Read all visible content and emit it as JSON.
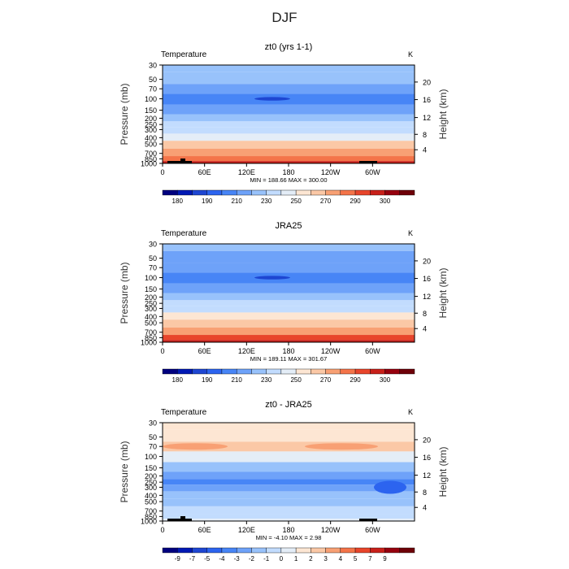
{
  "page": {
    "title": "DJF"
  },
  "colors": {
    "abs_scale": [
      "#00007f",
      "#0019b4",
      "#1e46d2",
      "#2c64ef",
      "#4785f6",
      "#6ea2f9",
      "#98c2fb",
      "#c2dcfe",
      "#e4edf7",
      "#fde6d3",
      "#fbc8a6",
      "#f8a074",
      "#f47449",
      "#e8452b",
      "#c8201a",
      "#96000e",
      "#6e0008"
    ],
    "diff_scale": [
      "#00007f",
      "#0019b4",
      "#1e46d2",
      "#2c64ef",
      "#4785f6",
      "#6ea2f9",
      "#98c2fb",
      "#c2dcfe",
      "#e4edf7",
      "#fde6d3",
      "#fbc8a6",
      "#f8a074",
      "#f47449",
      "#e8452b",
      "#c8201a",
      "#96000e",
      "#6e0008"
    ],
    "topography": "#000000"
  },
  "chart_data": [
    {
      "type": "heatmap",
      "title": "zt0 (yrs 1-1)",
      "left_label": "Temperature",
      "right_label": "K",
      "xticks": [
        "0",
        "60E",
        "120E",
        "180",
        "120W",
        "60W"
      ],
      "yticks_left": [
        "30",
        "50",
        "70",
        "100",
        "150",
        "200",
        "250",
        "300",
        "400",
        "500",
        "700",
        "850",
        "1000"
      ],
      "yticks_right": [
        "20",
        "16",
        "12",
        "8",
        "4"
      ],
      "ylabel_left": "Pressure (mb)",
      "ylabel_right": "Height (km)",
      "stats": "MIN = 188.66   MAX = 300.00",
      "colorbar_labels": [
        "180",
        "190",
        "210",
        "230",
        "250",
        "270",
        "290",
        "300"
      ],
      "profile_by_level": [
        {
          "p": 30,
          "value": 218
        },
        {
          "p": 50,
          "value": 212
        },
        {
          "p": 70,
          "value": 205
        },
        {
          "p": 100,
          "value": 196
        },
        {
          "p": 150,
          "value": 208
        },
        {
          "p": 200,
          "value": 216
        },
        {
          "p": 250,
          "value": 222
        },
        {
          "p": 300,
          "value": 228
        },
        {
          "p": 400,
          "value": 240
        },
        {
          "p": 500,
          "value": 252
        },
        {
          "p": 700,
          "value": 268
        },
        {
          "p": 850,
          "value": 280
        },
        {
          "p": 1000,
          "value": 292
        }
      ]
    },
    {
      "type": "heatmap",
      "title": "JRA25",
      "left_label": "Temperature",
      "right_label": "K",
      "xticks": [
        "0",
        "60E",
        "120E",
        "180",
        "120W",
        "60W"
      ],
      "yticks_left": [
        "30",
        "50",
        "70",
        "100",
        "150",
        "200",
        "250",
        "300",
        "400",
        "500",
        "700",
        "850",
        "1000"
      ],
      "yticks_right": [
        "20",
        "16",
        "12",
        "8",
        "4"
      ],
      "ylabel_left": "Pressure (mb)",
      "ylabel_right": "Height (km)",
      "stats": "MIN = 189.11   MAX = 301.67",
      "colorbar_labels": [
        "180",
        "190",
        "210",
        "230",
        "250",
        "270",
        "290",
        "300"
      ],
      "profile_by_level": [
        {
          "p": 30,
          "value": 216
        },
        {
          "p": 50,
          "value": 210
        },
        {
          "p": 70,
          "value": 203
        },
        {
          "p": 100,
          "value": 195
        },
        {
          "p": 150,
          "value": 207
        },
        {
          "p": 200,
          "value": 216
        },
        {
          "p": 250,
          "value": 223
        },
        {
          "p": 300,
          "value": 229
        },
        {
          "p": 400,
          "value": 241
        },
        {
          "p": 500,
          "value": 253
        },
        {
          "p": 700,
          "value": 269
        },
        {
          "p": 850,
          "value": 281
        },
        {
          "p": 1000,
          "value": 294
        }
      ]
    },
    {
      "type": "heatmap",
      "title": "zt0 - JRA25",
      "left_label": "Temperature",
      "right_label": "K",
      "xticks": [
        "0",
        "60E",
        "120E",
        "180",
        "120W",
        "60W"
      ],
      "yticks_left": [
        "30",
        "50",
        "70",
        "100",
        "150",
        "200",
        "250",
        "300",
        "400",
        "500",
        "700",
        "850",
        "1000"
      ],
      "yticks_right": [
        "20",
        "16",
        "12",
        "8",
        "4"
      ],
      "ylabel_left": "Pressure (mb)",
      "ylabel_right": "Height (km)",
      "stats": "MIN =   -4.10   MAX =    2.98",
      "colorbar_labels": [
        "-9",
        "-7",
        "-5",
        "-4",
        "-3",
        "-2",
        "-1",
        "0",
        "1",
        "2",
        "3",
        "4",
        "5",
        "7",
        "9"
      ],
      "profile_by_level": [
        {
          "p": 30,
          "value": 1.5
        },
        {
          "p": 50,
          "value": 2.0
        },
        {
          "p": 70,
          "value": 2.5
        },
        {
          "p": 100,
          "value": 0.5
        },
        {
          "p": 150,
          "value": -1.5
        },
        {
          "p": 200,
          "value": -2.5
        },
        {
          "p": 250,
          "value": -3.0
        },
        {
          "p": 300,
          "value": -2.5
        },
        {
          "p": 400,
          "value": -1.5
        },
        {
          "p": 500,
          "value": -1.0
        },
        {
          "p": 700,
          "value": -0.5
        },
        {
          "p": 850,
          "value": -0.5
        },
        {
          "p": 1000,
          "value": 0.5
        }
      ]
    }
  ]
}
